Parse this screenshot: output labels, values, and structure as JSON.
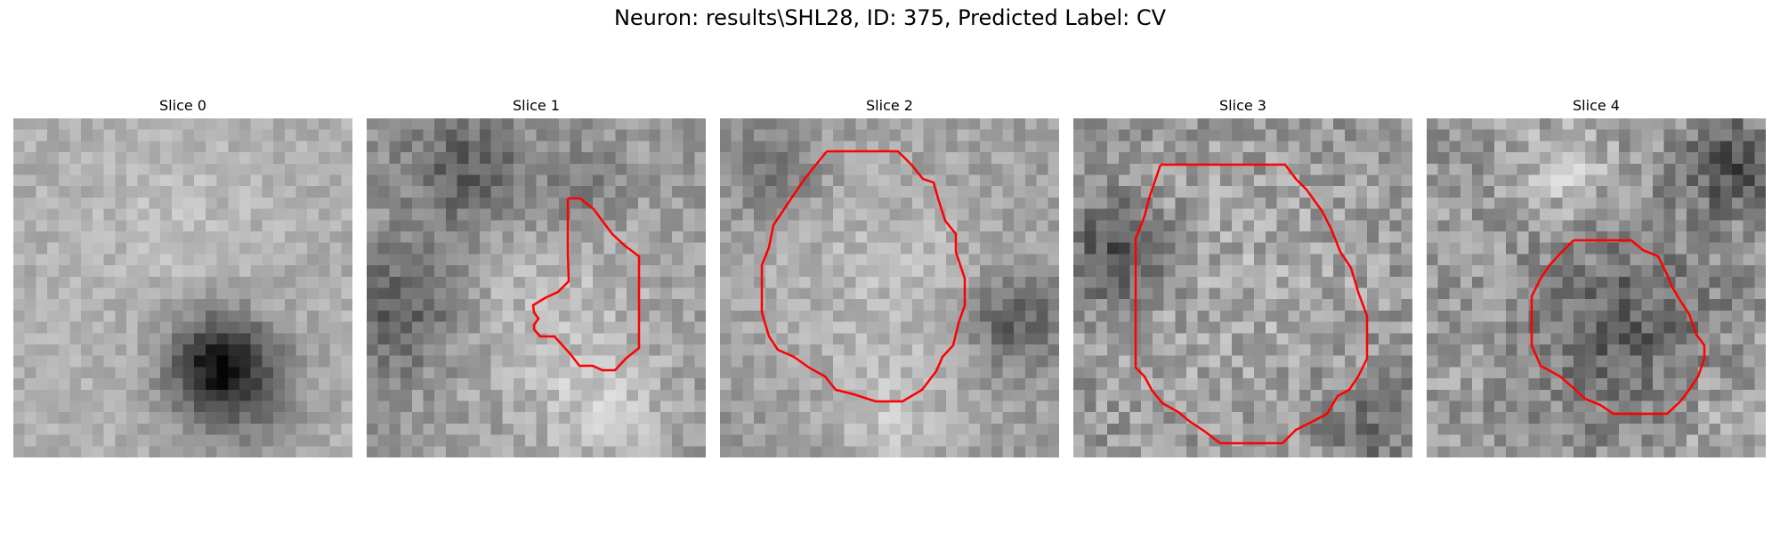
{
  "figure": {
    "title": "Neuron: results\\SHL28, ID: 375, Predicted Label: CV"
  },
  "panels": [
    {
      "label": "Slice 0"
    },
    {
      "label": "Slice 1"
    },
    {
      "label": "Slice 2"
    },
    {
      "label": "Slice 3"
    },
    {
      "label": "Slice 4"
    }
  ],
  "colors": {
    "contour": "#ff0000",
    "colormap": "gray"
  }
}
